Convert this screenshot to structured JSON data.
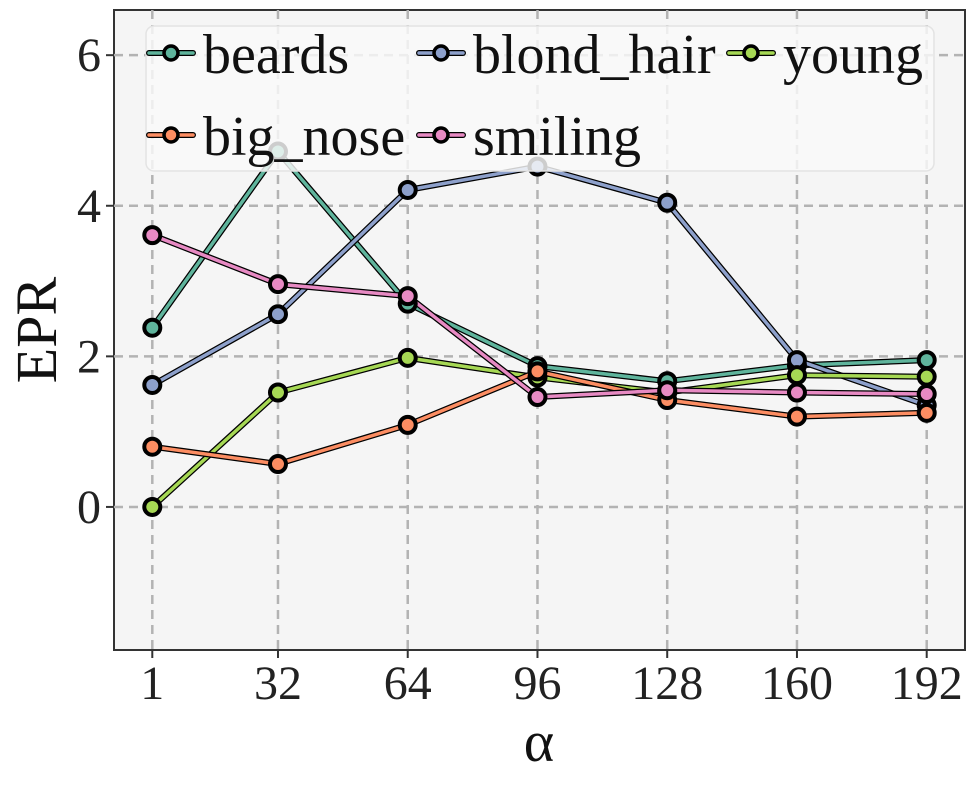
{
  "chart_data": {
    "type": "line",
    "xlabel": "α",
    "ylabel": "EPR",
    "x": [
      1,
      32,
      64,
      96,
      128,
      160,
      192
    ],
    "x_tick_labels": [
      "1",
      "32",
      "64",
      "96",
      "128",
      "160",
      "192"
    ],
    "y_ticks": [
      0,
      2,
      4,
      6
    ],
    "y_tick_labels": [
      "0",
      "2",
      "4",
      "6"
    ],
    "ylim": [
      -1.9,
      6.6
    ],
    "grid": true,
    "legend_position": "top",
    "series": [
      {
        "name": "beards",
        "color": "#5fb49c",
        "values": [
          2.38,
          4.72,
          2.7,
          1.87,
          1.67,
          1.88,
          1.95
        ]
      },
      {
        "name": "blond_hair",
        "color": "#8da0cb",
        "values": [
          1.62,
          2.56,
          4.21,
          4.52,
          4.04,
          1.95,
          1.35
        ]
      },
      {
        "name": "young",
        "color": "#a6d854",
        "values": [
          0.0,
          1.52,
          1.98,
          1.72,
          1.52,
          1.75,
          1.73
        ]
      },
      {
        "name": "big_nose",
        "color": "#fc8d62",
        "values": [
          0.8,
          0.57,
          1.09,
          1.8,
          1.42,
          1.2,
          1.25
        ]
      },
      {
        "name": "smiling",
        "color": "#e78ac3",
        "values": [
          3.61,
          2.96,
          2.8,
          1.46,
          1.55,
          1.52,
          1.5
        ]
      }
    ]
  }
}
